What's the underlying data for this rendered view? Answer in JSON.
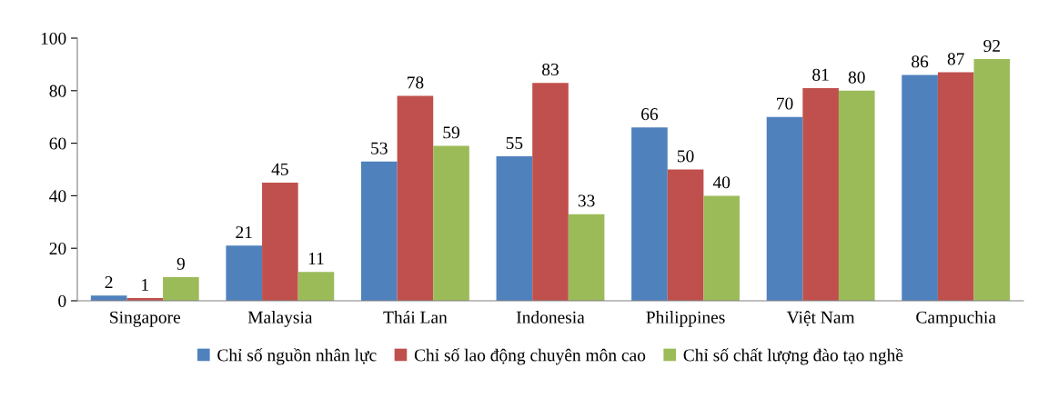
{
  "chart_data": {
    "type": "bar",
    "categories": [
      "Singapore",
      "Malaysia",
      "Thái Lan",
      "Indonesia",
      "Philippines",
      "Việt Nam",
      "Campuchia"
    ],
    "series": [
      {
        "name": "Chỉ số nguồn nhân lực",
        "color": "#4f81bd",
        "values": [
          2,
          21,
          53,
          55,
          66,
          70,
          86
        ]
      },
      {
        "name": "Chỉ số lao động chuyên môn cao",
        "color": "#c0504d",
        "values": [
          1,
          45,
          78,
          83,
          50,
          81,
          87
        ]
      },
      {
        "name": "Chỉ số chất lượng đào tạo nghề",
        "color": "#9bbb59",
        "values": [
          9,
          11,
          59,
          33,
          40,
          80,
          92
        ]
      }
    ],
    "ylim": [
      0,
      100
    ],
    "yticks": [
      0,
      20,
      40,
      60,
      80,
      100
    ],
    "grid": false,
    "legend": "bottom",
    "data_labels": true
  }
}
